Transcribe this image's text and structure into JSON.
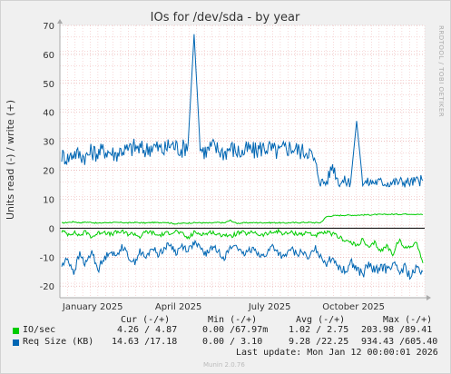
{
  "chart_data": {
    "type": "line",
    "title": "IOs for /dev/sda - by year",
    "ylabel": "Units read (-) / write (+)",
    "side_label": "RRDTOOL / TOBI OETIKER",
    "ylim": [
      -24,
      70
    ],
    "y_ticks": [
      70,
      60,
      50,
      40,
      30,
      20,
      10,
      0,
      -10,
      -20
    ],
    "y_tick_labels": [
      "70",
      "60",
      "50",
      "40",
      "30",
      "20",
      "10",
      "0",
      "-10",
      "-20"
    ],
    "x_tick_labels": [
      "January 2025",
      "April 2025",
      "July 2025",
      "October 2025"
    ],
    "x_tick_positions": [
      0.09,
      0.325,
      0.575,
      0.805
    ],
    "grid": true,
    "series": [
      {
        "name": "IO/sec",
        "color": "#00cc00",
        "write_values": [
          1.8,
          2.0,
          2.2,
          1.9,
          2.1,
          2.0,
          1.7,
          1.9,
          2.0,
          1.9,
          2.0,
          1.8,
          2.0,
          1.9,
          1.8,
          2.0,
          1.9,
          2.1,
          1.8,
          1.5,
          1.7,
          1.8,
          1.9,
          1.9,
          1.8,
          1.8,
          2.0,
          1.8,
          2.7,
          1.7,
          1.8,
          1.9,
          1.9,
          1.9,
          1.9,
          1.9,
          1.9,
          1.8,
          1.9,
          1.9,
          2.0,
          2.0,
          1.9,
          1.9,
          4.0,
          4.3,
          4.4,
          4.5,
          4.5,
          4.5,
          4.6,
          4.6,
          4.7,
          4.7,
          4.8,
          4.8,
          4.8,
          4.9,
          4.9,
          4.8,
          4.7
        ],
        "read_values": [
          -1.0,
          -2.0,
          -1.5,
          -2.5,
          -1.2,
          -3.0,
          -1.8,
          -1.0,
          -2.2,
          -1.5,
          -1.2,
          -2.0,
          -1.8,
          -3.0,
          -1.2,
          -1.5,
          -2.5,
          -2.0,
          -1.5,
          -1.0,
          -2.0,
          -3.5,
          -1.5,
          -1.8,
          -2.0,
          -1.2,
          -2.5,
          -2.0,
          -3.0,
          -1.8,
          -1.5,
          -2.0,
          -1.2,
          -2.5,
          -2.0,
          -1.5,
          -1.0,
          -2.0,
          -1.5,
          -1.8,
          -2.0,
          -1.5,
          -2.5,
          -2.0,
          -1.5,
          -2.0,
          -3.0,
          -4.0,
          -5.0,
          -6.0,
          -4.0,
          -7.0,
          -5.0,
          -8.0,
          -6.0,
          -9.0,
          -4.0,
          -7.0,
          -6.0,
          -5.0,
          -12.0
        ]
      },
      {
        "name": "Req Size (KB)",
        "color": "#0066b3",
        "write_values": [
          25.2,
          24.1,
          26.0,
          25.4,
          24.6,
          26.5,
          25.8,
          27.0,
          26.3,
          25.5,
          27.2,
          26.8,
          28.0,
          27.4,
          26.9,
          28.5,
          27.6,
          26.8,
          29.0,
          28.1,
          27.3,
          29.2,
          67.0,
          27.5,
          26.4,
          28.3,
          27.1,
          26.0,
          27.8,
          26.7,
          25.9,
          27.4,
          26.5,
          27.6,
          28.0,
          27.0,
          26.2,
          27.5,
          28.0,
          27.2,
          26.5,
          27.0,
          23.0,
          16.0,
          15.8,
          22.0,
          16.0,
          16.2,
          15.9,
          37.0,
          15.7,
          15.8,
          16.0,
          15.9,
          15.7,
          15.8,
          16.0,
          16.0,
          15.9,
          16.3,
          16.5
        ],
        "read_values": [
          -13.0,
          -10.5,
          -15.0,
          -9.0,
          -12.5,
          -8.0,
          -14.0,
          -11.0,
          -7.5,
          -10.0,
          -6.0,
          -9.5,
          -12.0,
          -8.0,
          -10.5,
          -6.5,
          -9.0,
          -7.0,
          -5.5,
          -8.5,
          -6.0,
          -7.5,
          -5.0,
          -7.0,
          -9.0,
          -6.5,
          -8.0,
          -10.0,
          -7.0,
          -5.5,
          -9.5,
          -8.0,
          -6.5,
          -10.0,
          -9.0,
          -6.0,
          -8.5,
          -10.5,
          -7.0,
          -9.0,
          -8.0,
          -11.0,
          -6.5,
          -9.5,
          -12.0,
          -10.0,
          -13.0,
          -15.0,
          -11.5,
          -14.0,
          -16.0,
          -12.5,
          -15.0,
          -13.0,
          -14.5,
          -12.0,
          -15.5,
          -13.5,
          -17.0,
          -14.0,
          -15.0
        ]
      }
    ]
  },
  "legend": {
    "headers": [
      "Cur (-/+)",
      "Min (-/+)",
      "Avg (-/+)",
      "Max (-/+)"
    ],
    "rows": [
      {
        "label": "IO/sec",
        "color": "#00cc00",
        "cur": "4.26 / 4.87",
        "min": "0.00 /67.97m",
        "avg": "1.02 / 2.75",
        "max": "203.98 /89.41"
      },
      {
        "label": "Req Size (KB)",
        "color": "#0066b3",
        "cur": "14.63 /17.18",
        "min": "0.00 / 3.10",
        "avg": "9.28 /22.25",
        "max": "934.43 /605.40"
      }
    ],
    "last_update": "Last update: Mon Jan 12 00:00:01 2026",
    "footer_label": "Munin 2.0.76"
  }
}
